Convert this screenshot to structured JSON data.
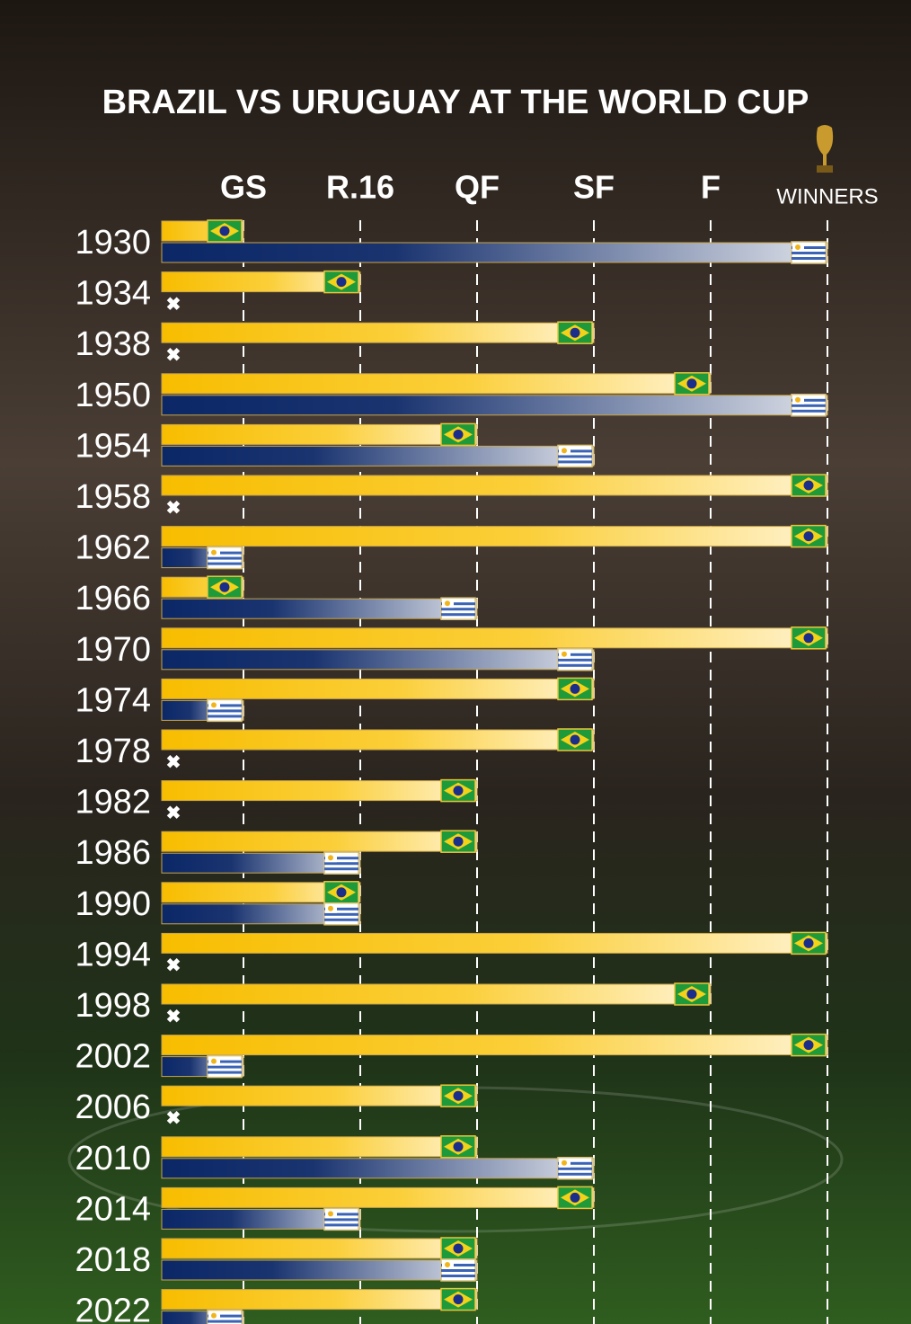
{
  "chart_data": {
    "type": "bar",
    "orientation": "horizontal",
    "title": "BRAZIL VS URUGUAY AT THE WORLD CUP",
    "categories": [
      "1930",
      "1934",
      "1938",
      "1950",
      "1954",
      "1958",
      "1962",
      "1966",
      "1970",
      "1974",
      "1978",
      "1982",
      "1986",
      "1990",
      "1994",
      "1998",
      "2002",
      "2006",
      "2010",
      "2014",
      "2018",
      "2022"
    ],
    "series": [
      {
        "color": "#f7bd00",
        "flag": "brazil",
        "values": [
          1,
          2,
          4,
          5,
          3,
          6,
          6,
          1,
          6,
          4,
          4,
          3,
          3,
          2,
          6,
          5,
          6,
          3,
          3,
          4,
          3,
          3
        ]
      },
      {
        "color": "#0b2766",
        "flag": "uruguay",
        "values": [
          6,
          null,
          null,
          6,
          4,
          null,
          1,
          3,
          4,
          1,
          null,
          null,
          2,
          2,
          null,
          null,
          1,
          null,
          4,
          2,
          3,
          1
        ]
      }
    ],
    "xlim": [
      0.3,
      6
    ],
    "xticks": [
      {
        "value": 1,
        "label": "GS"
      },
      {
        "value": 2,
        "label": "R.16"
      },
      {
        "value": 3,
        "label": "QF"
      },
      {
        "value": 4,
        "label": "SF"
      },
      {
        "value": 5,
        "label": "F"
      },
      {
        "value": 6,
        "label": "WINNERS"
      }
    ],
    "grid": true
  }
}
